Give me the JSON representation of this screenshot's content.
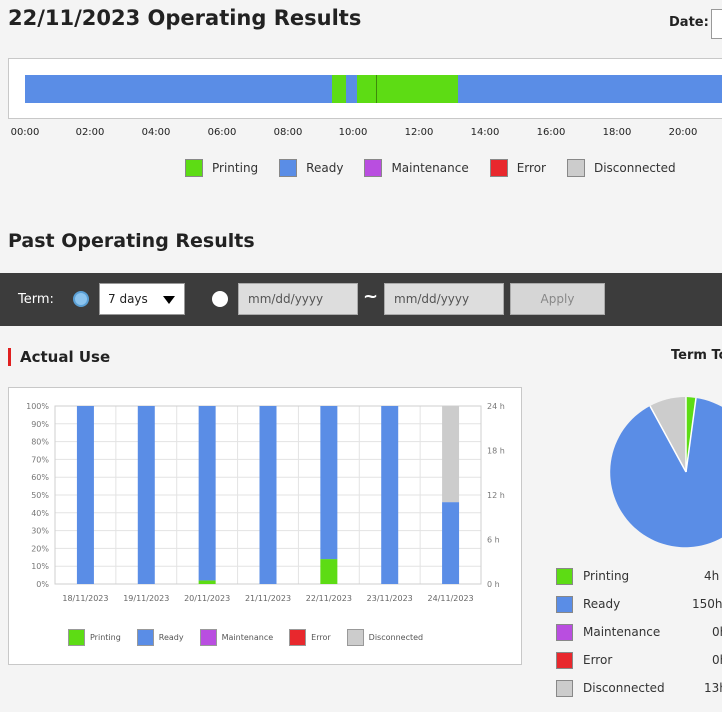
{
  "header": {
    "title": "22/11/2023 Operating Results",
    "date_label": "Date:"
  },
  "timeline": {
    "hours": [
      "00:00",
      "02:00",
      "04:00",
      "06:00",
      "08:00",
      "10:00",
      "12:00",
      "14:00",
      "16:00",
      "18:00",
      "20:00"
    ]
  },
  "legend": {
    "items": [
      {
        "label": "Printing",
        "color": "#5ddc14"
      },
      {
        "label": "Ready",
        "color": "#5a8de6"
      },
      {
        "label": "Maintenance",
        "color": "#b94ee0"
      },
      {
        "label": "Error",
        "color": "#e8282d"
      },
      {
        "label": "Disconnected",
        "color": "#cccccc"
      }
    ]
  },
  "past": {
    "title": "Past Operating Results"
  },
  "term": {
    "label": "Term:",
    "select_value": "7 days",
    "date_from_placeholder": "mm/dd/yyyy",
    "date_to_placeholder": "mm/dd/yyyy",
    "tilde": "~",
    "apply_label": "Apply"
  },
  "actual_use": {
    "title": "Actual Use"
  },
  "term_total": {
    "title": "Term To"
  },
  "chart_data": {
    "type": "bar",
    "categories": [
      "18/11/2023",
      "19/11/2023",
      "20/11/2023",
      "21/11/2023",
      "22/11/2023",
      "23/11/2023",
      "24/11/2023"
    ],
    "y_left_ticks": [
      "0%",
      "10%",
      "20%",
      "30%",
      "40%",
      "50%",
      "60%",
      "70%",
      "80%",
      "90%",
      "100%"
    ],
    "y_right_ticks": [
      "0 h",
      "6 h",
      "12 h",
      "18 h",
      "24 h"
    ],
    "ylim": [
      0,
      100
    ],
    "series": [
      {
        "name": "Printing",
        "color": "#5ddc14",
        "values": [
          0,
          0,
          2,
          0,
          14,
          0,
          0
        ]
      },
      {
        "name": "Ready",
        "color": "#5a8de6",
        "values": [
          100,
          100,
          98,
          100,
          86,
          100,
          46
        ]
      },
      {
        "name": "Maintenance",
        "color": "#b94ee0",
        "values": [
          0,
          0,
          0,
          0,
          0,
          0,
          0
        ]
      },
      {
        "name": "Error",
        "color": "#e8282d",
        "values": [
          0,
          0,
          0,
          0,
          0,
          0,
          0
        ]
      },
      {
        "name": "Disconnected",
        "color": "#cccccc",
        "values": [
          0,
          0,
          0,
          0,
          0,
          0,
          54
        ]
      }
    ]
  },
  "pie": {
    "items": [
      {
        "label": "Printing",
        "value": "4h",
        "color": "#5ddc14"
      },
      {
        "label": "Ready",
        "value": "150h",
        "color": "#5a8de6"
      },
      {
        "label": "Maintenance",
        "value": "0h",
        "color": "#b94ee0"
      },
      {
        "label": "Error",
        "value": "0h",
        "color": "#e8282d"
      },
      {
        "label": "Disconnected",
        "value": "13h",
        "color": "#cccccc"
      }
    ]
  }
}
